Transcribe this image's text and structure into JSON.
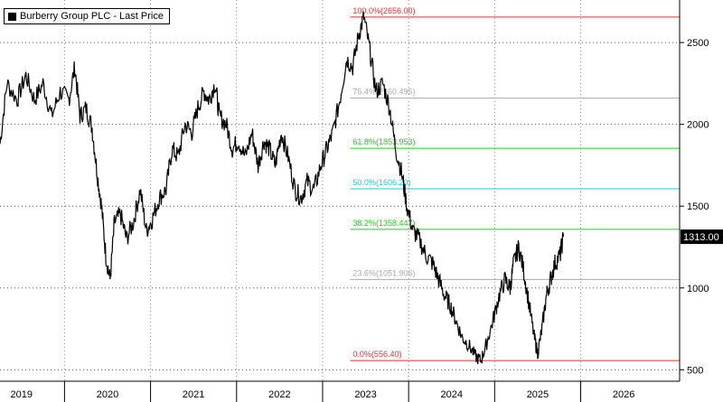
{
  "chart_data": {
    "type": "line",
    "legend": {
      "label": "Burberry Group PLC - Last Price",
      "position": "top-left"
    },
    "last_price": {
      "value": 1313.0,
      "label": "1313.00"
    },
    "y_axis": {
      "side": "right",
      "min": 430,
      "max": 2760,
      "ticks": [
        500,
        1000,
        1500,
        2000,
        2500
      ],
      "tick_labels": [
        "500",
        "1000",
        "1500",
        "2000",
        "2500"
      ]
    },
    "x_axis": {
      "min": 2018.75,
      "max": 2026.65,
      "ticks": [
        2019,
        2020,
        2021,
        2022,
        2023,
        2024,
        2025,
        2026
      ],
      "tick_labels": [
        "2019",
        "2020",
        "2021",
        "2022",
        "2023",
        "2024",
        "2025",
        "2026"
      ]
    },
    "grid": true,
    "fibonacci": {
      "x_start": 2022.82,
      "levels": [
        {
          "value": 2656.0,
          "label": "100.0%(2656.00)",
          "color": "#e03030"
        },
        {
          "value": 2160.495,
          "label": "76.4%(2160.495)",
          "color": "#aaaaaa"
        },
        {
          "value": 1853.953,
          "label": "61.8%(1853.953)",
          "color": "#22cc22"
        },
        {
          "value": 1606.2,
          "label": "50.0%(1606.20)",
          "color": "#22cccc"
        },
        {
          "value": 1358.447,
          "label": "38.2%(1358.447)",
          "color": "#22cc22"
        },
        {
          "value": 1051.906,
          "label": "23.6%(1051.906)",
          "color": "#aaaaaa"
        },
        {
          "value": 556.4,
          "label": "0.0%(556.40)",
          "color": "#e03030"
        }
      ]
    },
    "series": [
      {
        "color": "#000000",
        "points": [
          [
            2018.75,
            1880
          ],
          [
            2018.83,
            2250
          ],
          [
            2018.95,
            2150
          ],
          [
            2019.05,
            2300
          ],
          [
            2019.15,
            2150
          ],
          [
            2019.25,
            2250
          ],
          [
            2019.35,
            2050
          ],
          [
            2019.45,
            2200
          ],
          [
            2019.55,
            2150
          ],
          [
            2019.62,
            2350
          ],
          [
            2019.68,
            2050
          ],
          [
            2019.75,
            2100
          ],
          [
            2019.82,
            1980
          ],
          [
            2019.88,
            1700
          ],
          [
            2019.93,
            1500
          ],
          [
            2019.98,
            1200
          ],
          [
            2020.03,
            1050
          ],
          [
            2020.08,
            1400
          ],
          [
            2020.15,
            1450
          ],
          [
            2020.22,
            1300
          ],
          [
            2020.3,
            1400
          ],
          [
            2020.38,
            1600
          ],
          [
            2020.45,
            1350
          ],
          [
            2020.52,
            1420
          ],
          [
            2020.6,
            1550
          ],
          [
            2020.68,
            1600
          ],
          [
            2020.75,
            1850
          ],
          [
            2020.82,
            1800
          ],
          [
            2020.9,
            2000
          ],
          [
            2020.98,
            1950
          ],
          [
            2021.05,
            2100
          ],
          [
            2021.12,
            2200
          ],
          [
            2021.18,
            2150
          ],
          [
            2021.25,
            2250
          ],
          [
            2021.3,
            2050
          ],
          [
            2021.38,
            2000
          ],
          [
            2021.45,
            1850
          ],
          [
            2021.52,
            1900
          ],
          [
            2021.6,
            1800
          ],
          [
            2021.68,
            1950
          ],
          [
            2021.75,
            1750
          ],
          [
            2021.82,
            1900
          ],
          [
            2021.88,
            1850
          ],
          [
            2021.95,
            1750
          ],
          [
            2022.02,
            1950
          ],
          [
            2022.1,
            1800
          ],
          [
            2022.18,
            1600
          ],
          [
            2022.25,
            1550
          ],
          [
            2022.32,
            1650
          ],
          [
            2022.4,
            1600
          ],
          [
            2022.48,
            1750
          ],
          [
            2022.55,
            1850
          ],
          [
            2022.62,
            1950
          ],
          [
            2022.7,
            2150
          ],
          [
            2022.78,
            2400
          ],
          [
            2022.85,
            2350
          ],
          [
            2022.92,
            2550
          ],
          [
            2022.98,
            2656
          ],
          [
            2023.05,
            2450
          ],
          [
            2023.12,
            2200
          ],
          [
            2023.2,
            2250
          ],
          [
            2023.28,
            2100
          ],
          [
            2023.35,
            1850
          ],
          [
            2023.42,
            1700
          ],
          [
            2023.48,
            1500
          ],
          [
            2023.55,
            1350
          ],
          [
            2023.62,
            1300
          ],
          [
            2023.7,
            1200
          ],
          [
            2023.78,
            1150
          ],
          [
            2023.85,
            1050
          ],
          [
            2023.92,
            950
          ],
          [
            2023.98,
            900
          ],
          [
            2024.05,
            800
          ],
          [
            2024.12,
            700
          ],
          [
            2024.2,
            650
          ],
          [
            2024.28,
            580
          ],
          [
            2024.34,
            556.4
          ],
          [
            2024.4,
            650
          ],
          [
            2024.48,
            800
          ],
          [
            2024.55,
            950
          ],
          [
            2024.62,
            1050
          ],
          [
            2024.68,
            1000
          ],
          [
            2024.72,
            1150
          ],
          [
            2024.78,
            1250
          ],
          [
            2024.84,
            1100
          ],
          [
            2024.9,
            900
          ],
          [
            2024.96,
            700
          ],
          [
            2025.0,
            600
          ],
          [
            2025.05,
            750
          ],
          [
            2025.1,
            950
          ],
          [
            2025.15,
            1050
          ],
          [
            2025.2,
            1150
          ],
          [
            2025.26,
            1200
          ],
          [
            2025.3,
            1313
          ]
        ]
      }
    ]
  }
}
